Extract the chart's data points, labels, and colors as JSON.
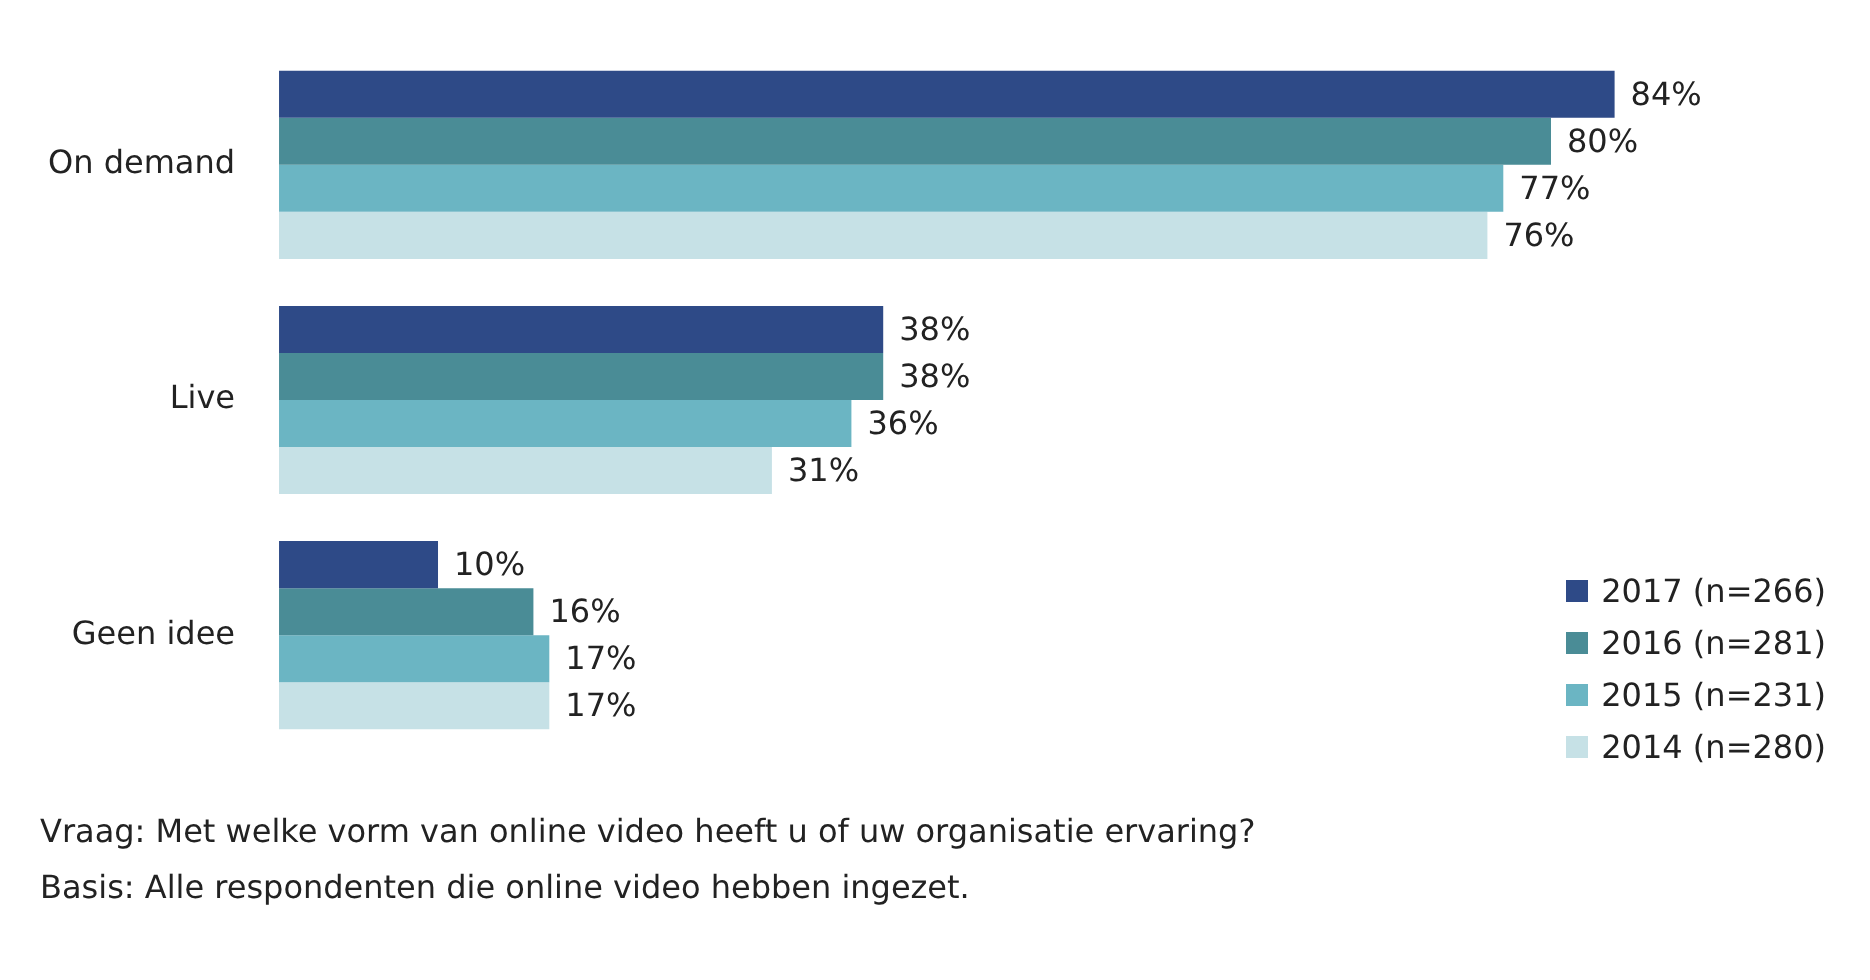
{
  "chart_data": {
    "type": "bar",
    "orientation": "horizontal",
    "categories": [
      "On demand",
      "Live",
      "Geen idee"
    ],
    "series": [
      {
        "name": "2017 (n=266)",
        "color": "#2e4a87",
        "values": [
          84,
          38,
          10
        ],
        "value_labels": [
          "84%",
          "38%",
          "10%"
        ]
      },
      {
        "name": "2016 (n=281)",
        "color": "#4a8c96",
        "values": [
          80,
          38,
          16
        ],
        "value_labels": [
          "80%",
          "38%",
          "16%"
        ]
      },
      {
        "name": "2015 (n=231)",
        "color": "#6bb5c3",
        "values": [
          77,
          36,
          17
        ],
        "value_labels": [
          "77%",
          "36%",
          "17%"
        ]
      },
      {
        "name": "2014 (n=280)",
        "color": "#c6e1e6",
        "values": [
          76,
          31,
          17
        ],
        "value_labels": [
          "76%",
          "31%",
          "17%"
        ]
      }
    ],
    "legend": "bottom right",
    "grid": false,
    "annotations": [
      "Vraag: Met welke vorm van online video heeft u of uw organisatie ervaring?",
      "Basis: Alle respondenten die online video hebben ingezet."
    ]
  }
}
